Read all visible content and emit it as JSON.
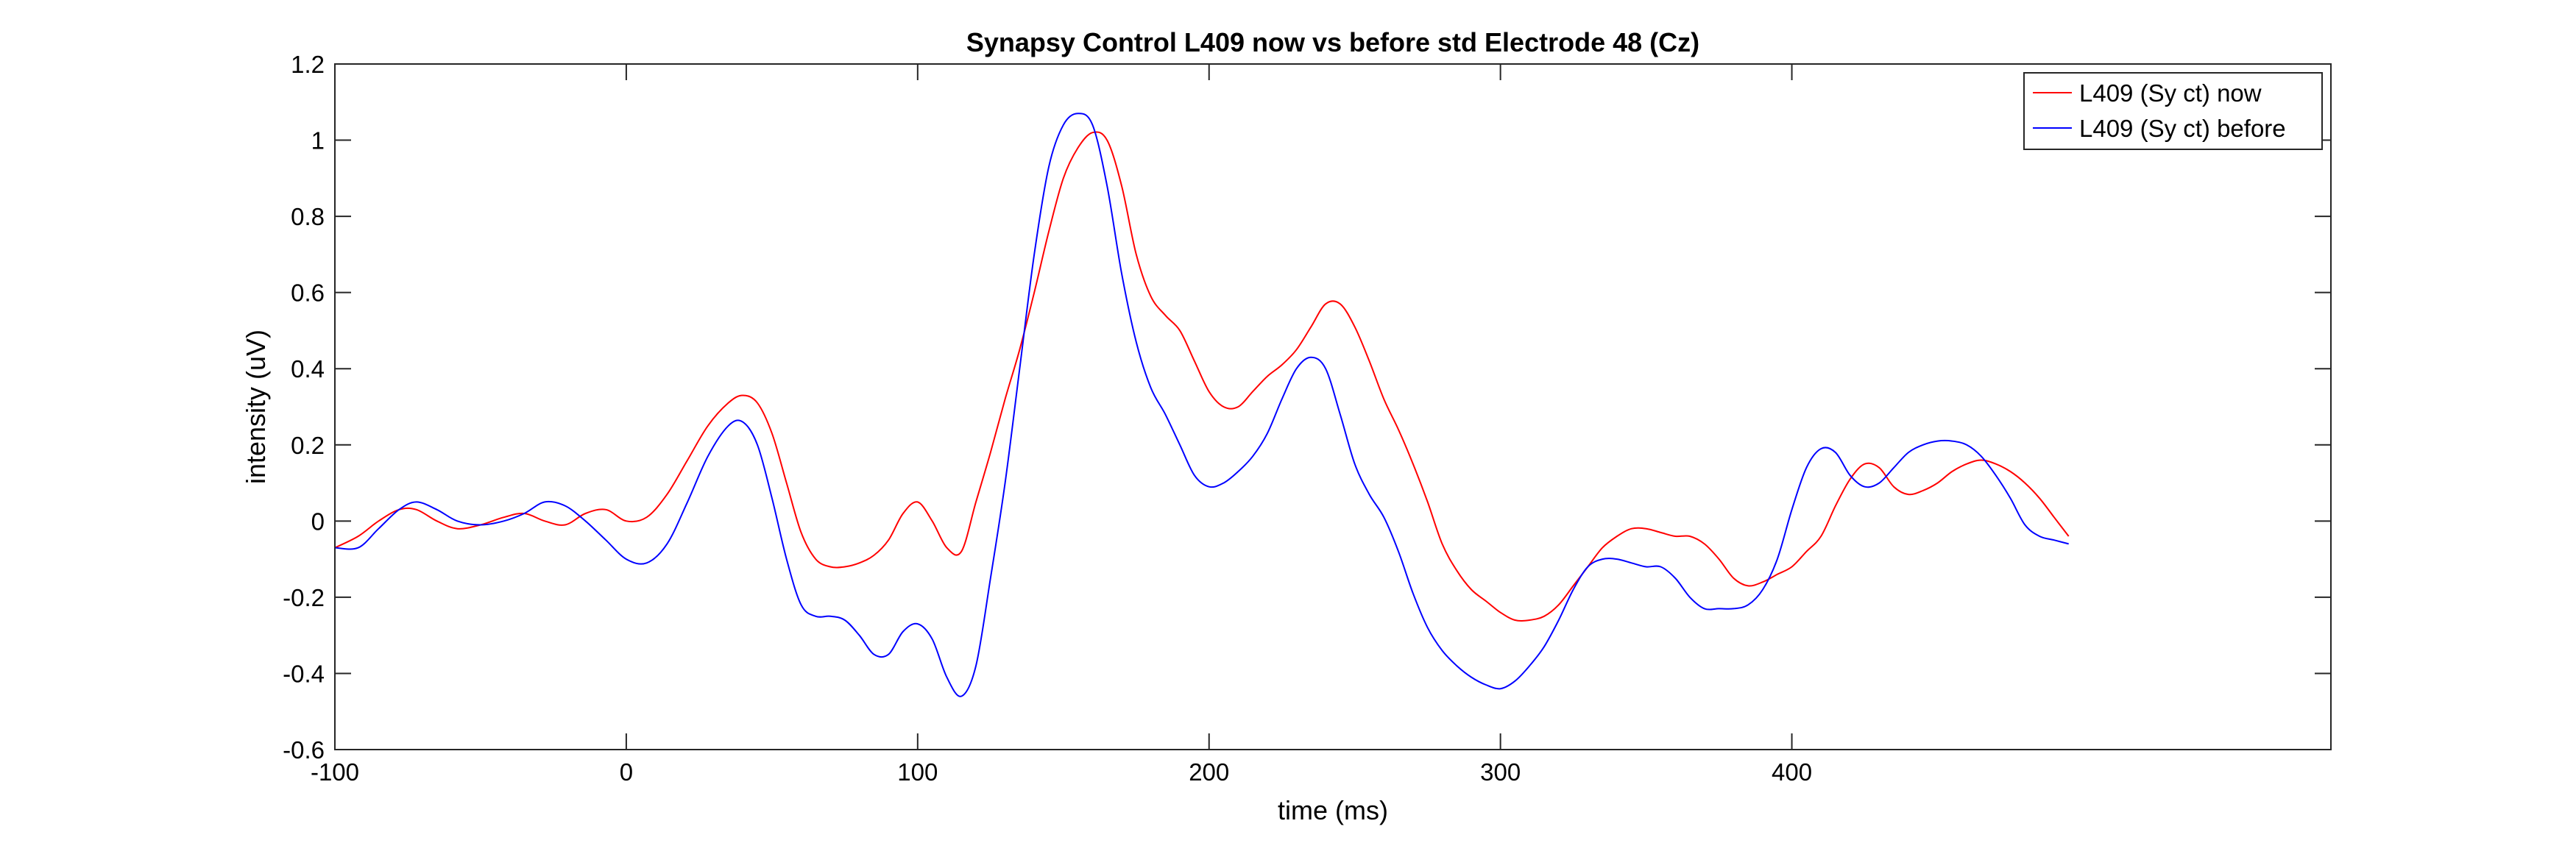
{
  "chart_data": {
    "type": "line",
    "title": "Synapsy Control L409 now vs before std Electrode 48 (Cz)",
    "xlabel": "time (ms)",
    "ylabel": "intensity (uV)",
    "xlim": [
      -100,
      585
    ],
    "ylim": [
      -0.6,
      1.2
    ],
    "xticks": [
      -100,
      0,
      100,
      200,
      300,
      400
    ],
    "xtick_labels": [
      "-100",
      "0",
      "100",
      "200",
      "300",
      "400"
    ],
    "yticks": [
      -0.6,
      -0.4,
      -0.2,
      0,
      0.2,
      0.4,
      0.6,
      0.8,
      1,
      1.2
    ],
    "ytick_labels": [
      "-0.6",
      "-0.4",
      "-0.2",
      "0",
      "0.2",
      "0.4",
      "0.6",
      "0.8",
      "1",
      "1.2"
    ],
    "grid": false,
    "legend_position": "top-right",
    "series": [
      {
        "name": "L409 (Sy ct) now",
        "color": "#ff0000",
        "x": [
          -100,
          -92,
          -85,
          -78,
          -72,
          -65,
          -58,
          -50,
          -42,
          -35,
          -28,
          -21,
          -14,
          -7,
          0,
          7,
          14,
          21,
          28,
          35,
          40,
          45,
          50,
          55,
          60,
          65,
          70,
          75,
          80,
          85,
          90,
          95,
          100,
          105,
          110,
          115,
          120,
          125,
          130,
          135,
          140,
          145,
          150,
          155,
          160,
          165,
          170,
          175,
          180,
          185,
          190,
          195,
          200,
          205,
          210,
          215,
          220,
          225,
          230,
          235,
          240,
          245,
          250,
          255,
          260,
          265,
          270,
          275,
          280,
          285,
          290,
          295,
          300,
          305,
          310,
          315,
          320,
          325,
          330,
          335,
          340,
          345,
          350,
          355,
          360,
          365,
          370,
          375,
          380,
          385,
          390,
          395,
          400,
          405,
          410,
          415,
          420,
          425,
          430,
          435,
          440,
          445,
          450,
          455,
          460,
          465,
          470,
          475,
          480,
          485,
          490,
          495
        ],
        "y": [
          -0.07,
          -0.04,
          0.0,
          0.03,
          0.03,
          0.0,
          -0.02,
          -0.01,
          0.01,
          0.02,
          0.0,
          -0.01,
          0.02,
          0.03,
          0.0,
          0.01,
          0.07,
          0.16,
          0.25,
          0.31,
          0.33,
          0.31,
          0.23,
          0.1,
          -0.03,
          -0.1,
          -0.12,
          -0.12,
          -0.11,
          -0.09,
          -0.05,
          0.02,
          0.05,
          0.0,
          -0.07,
          -0.08,
          0.05,
          0.18,
          0.32,
          0.45,
          0.6,
          0.76,
          0.9,
          0.98,
          1.02,
          1.0,
          0.88,
          0.7,
          0.59,
          0.54,
          0.5,
          0.42,
          0.34,
          0.3,
          0.3,
          0.34,
          0.38,
          0.41,
          0.45,
          0.51,
          0.57,
          0.57,
          0.51,
          0.42,
          0.32,
          0.24,
          0.15,
          0.05,
          -0.06,
          -0.13,
          -0.18,
          -0.21,
          -0.24,
          -0.26,
          -0.26,
          -0.25,
          -0.22,
          -0.17,
          -0.12,
          -0.07,
          -0.04,
          -0.02,
          -0.02,
          -0.03,
          -0.04,
          -0.04,
          -0.06,
          -0.1,
          -0.15,
          -0.17,
          -0.16,
          -0.14,
          -0.12,
          -0.08,
          -0.04,
          0.04,
          0.11,
          0.15,
          0.14,
          0.09,
          0.07,
          0.08,
          0.1,
          0.13,
          0.15,
          0.16,
          0.15,
          0.13,
          0.1,
          0.06,
          0.01,
          -0.04
        ]
      },
      {
        "name": "L409 (Sy ct) before",
        "color": "#0000ff",
        "x": [
          -100,
          -92,
          -85,
          -78,
          -72,
          -65,
          -58,
          -50,
          -42,
          -35,
          -28,
          -21,
          -14,
          -7,
          0,
          7,
          14,
          21,
          28,
          35,
          40,
          45,
          50,
          55,
          60,
          65,
          70,
          75,
          80,
          85,
          90,
          95,
          100,
          105,
          110,
          115,
          120,
          125,
          130,
          135,
          140,
          145,
          150,
          155,
          160,
          165,
          170,
          175,
          180,
          185,
          190,
          195,
          200,
          205,
          210,
          215,
          220,
          225,
          230,
          235,
          240,
          245,
          250,
          255,
          260,
          265,
          270,
          275,
          280,
          285,
          290,
          295,
          300,
          305,
          310,
          315,
          320,
          325,
          330,
          335,
          340,
          345,
          350,
          355,
          360,
          365,
          370,
          375,
          380,
          385,
          390,
          395,
          400,
          405,
          410,
          415,
          420,
          425,
          430,
          435,
          440,
          445,
          450,
          455,
          460,
          465,
          470,
          475,
          480,
          485,
          490,
          495
        ],
        "y": [
          -0.07,
          -0.07,
          -0.02,
          0.03,
          0.05,
          0.03,
          0.0,
          -0.01,
          0.0,
          0.02,
          0.05,
          0.04,
          0.0,
          -0.05,
          -0.1,
          -0.11,
          -0.06,
          0.05,
          0.17,
          0.25,
          0.26,
          0.2,
          0.06,
          -0.1,
          -0.22,
          -0.25,
          -0.25,
          -0.26,
          -0.3,
          -0.35,
          -0.35,
          -0.29,
          -0.27,
          -0.31,
          -0.41,
          -0.46,
          -0.38,
          -0.15,
          0.1,
          0.4,
          0.7,
          0.93,
          1.04,
          1.07,
          1.04,
          0.88,
          0.65,
          0.47,
          0.35,
          0.28,
          0.2,
          0.12,
          0.09,
          0.1,
          0.13,
          0.17,
          0.23,
          0.32,
          0.4,
          0.43,
          0.4,
          0.28,
          0.15,
          0.07,
          0.01,
          -0.08,
          -0.19,
          -0.28,
          -0.34,
          -0.38,
          -0.41,
          -0.43,
          -0.44,
          -0.42,
          -0.38,
          -0.33,
          -0.26,
          -0.18,
          -0.12,
          -0.1,
          -0.1,
          -0.11,
          -0.12,
          -0.12,
          -0.15,
          -0.2,
          -0.23,
          -0.23,
          -0.23,
          -0.22,
          -0.18,
          -0.1,
          0.03,
          0.14,
          0.19,
          0.18,
          0.12,
          0.09,
          0.1,
          0.14,
          0.18,
          0.2,
          0.21,
          0.21,
          0.2,
          0.17,
          0.12,
          0.06,
          -0.01,
          -0.04,
          -0.05,
          -0.06
        ]
      }
    ]
  }
}
